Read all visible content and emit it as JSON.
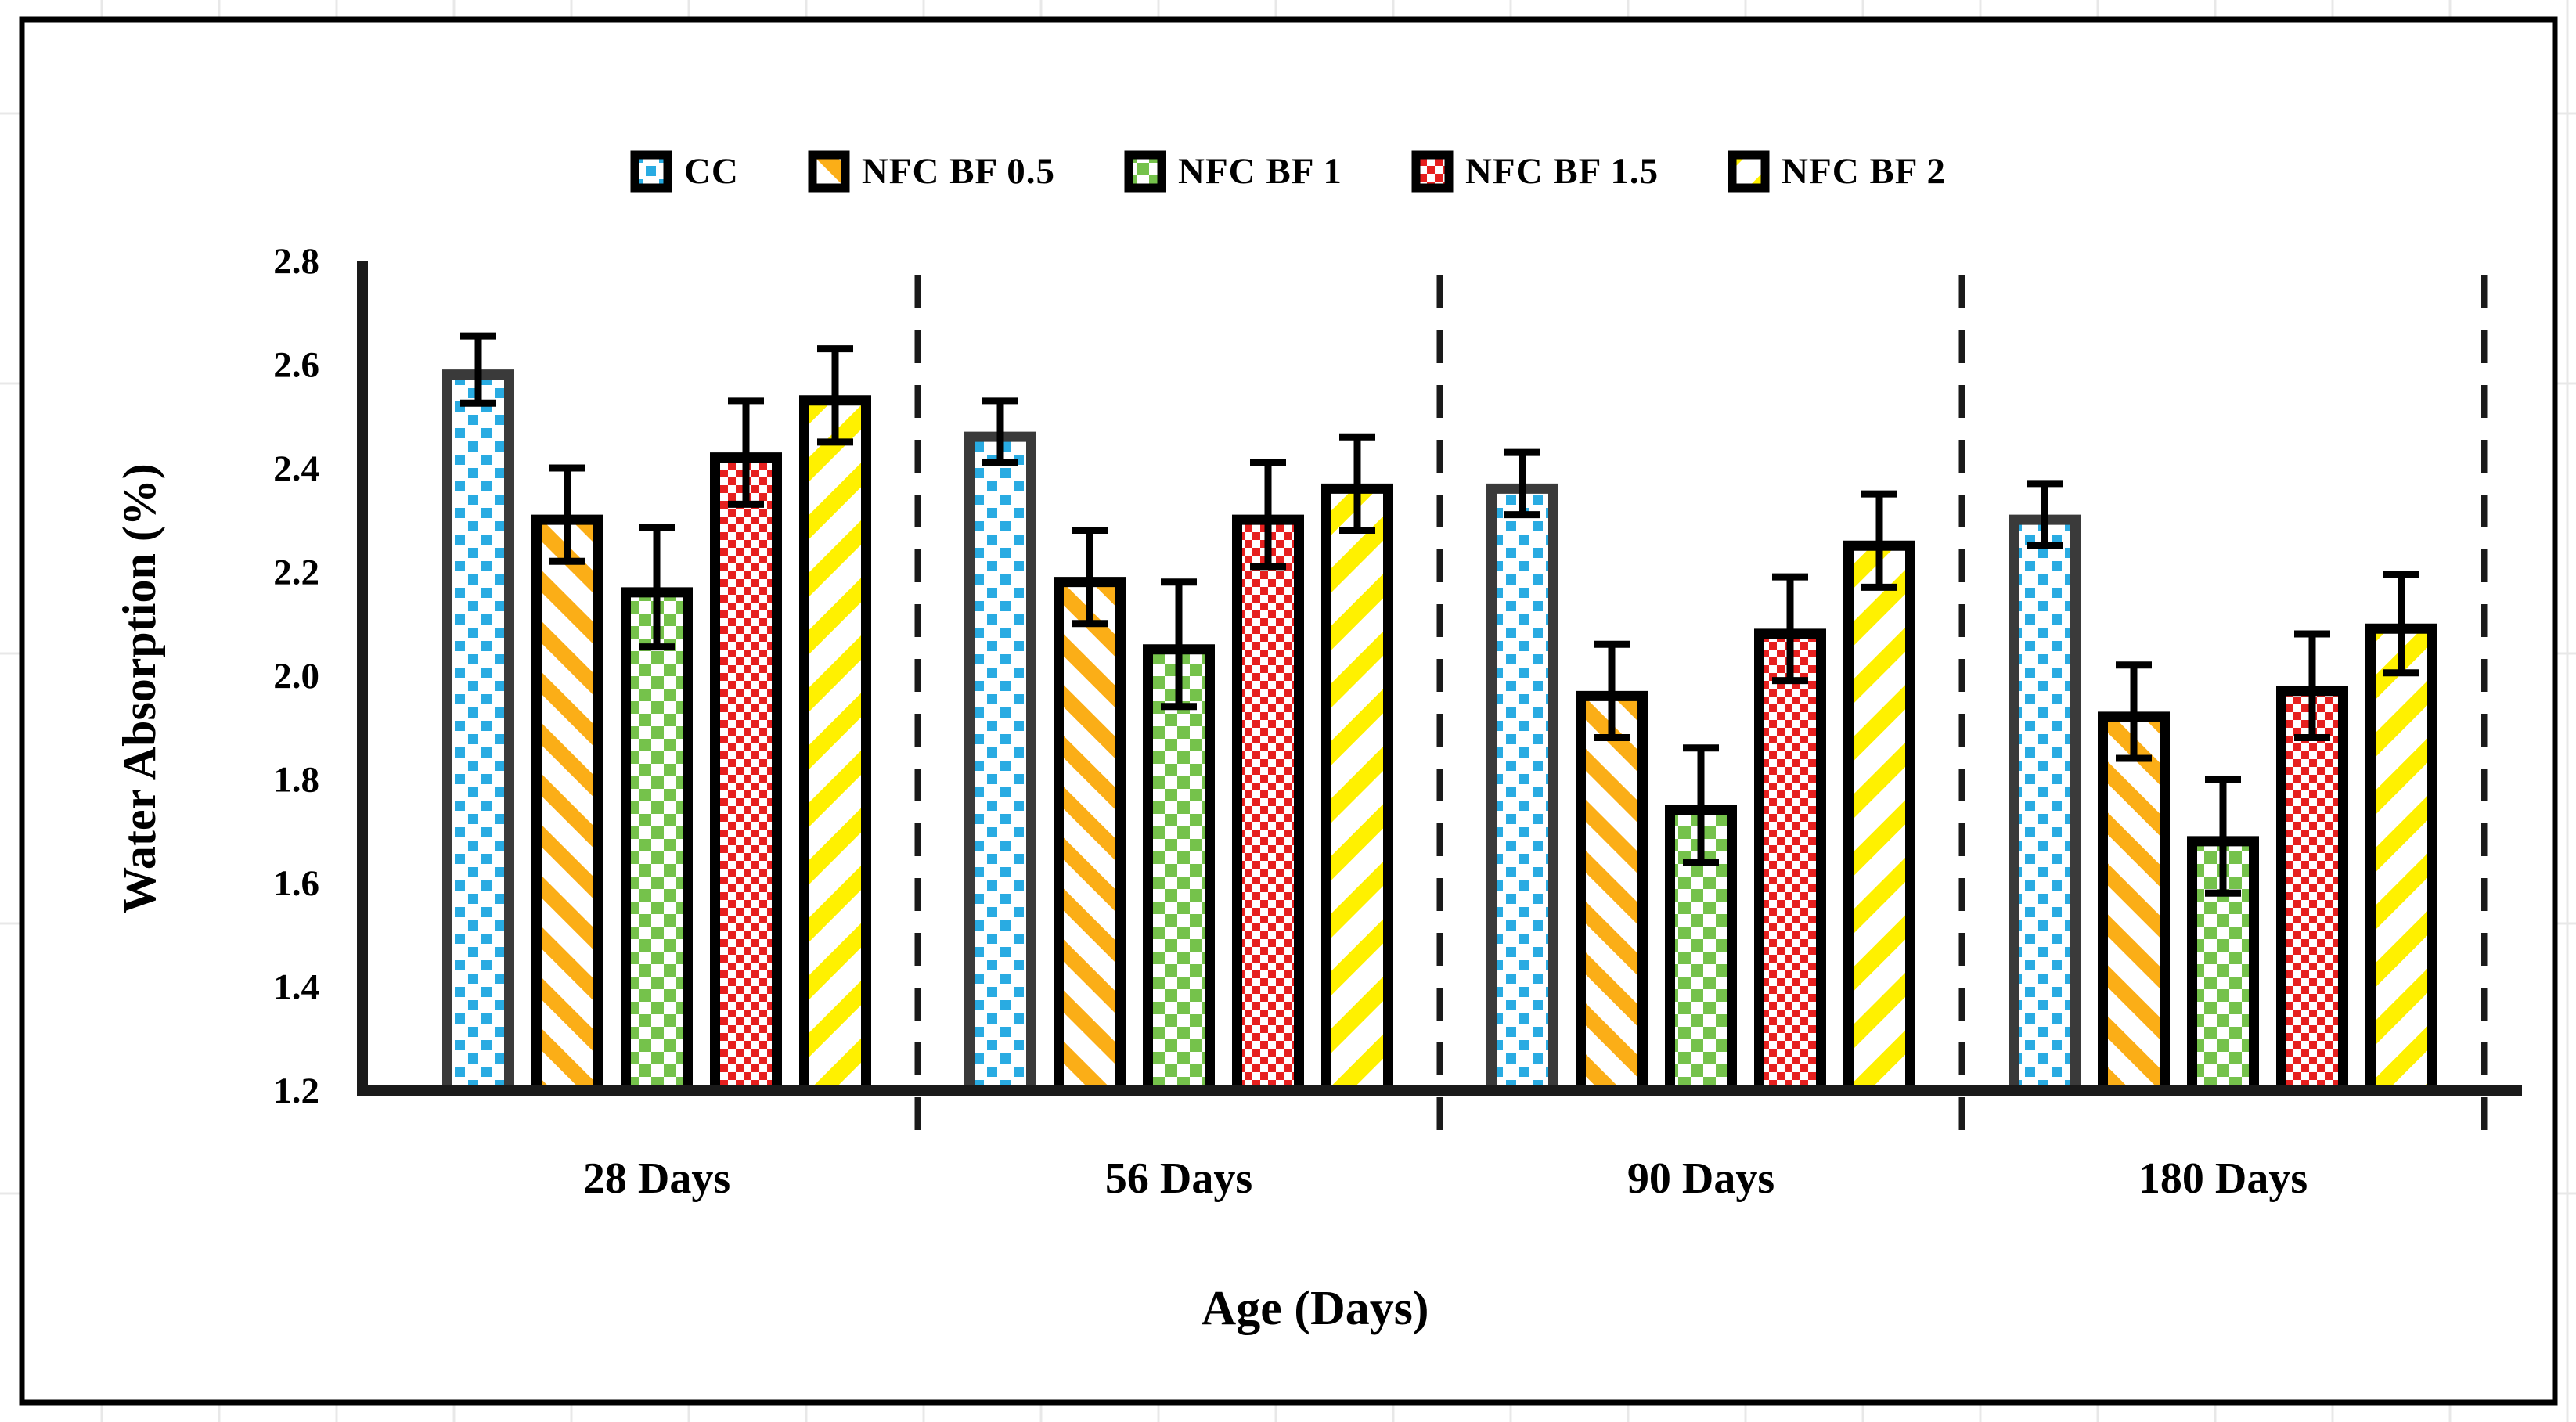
{
  "chart_data": {
    "type": "bar",
    "title": "",
    "xlabel": "Age (Days)",
    "ylabel": "Water Absorption (%)",
    "ylim": [
      1.2,
      2.8
    ],
    "yticks": [
      "2.8",
      "2.6",
      "2.4",
      "2.2",
      "2.0",
      "1.8",
      "1.6",
      "1.4",
      "1.2"
    ],
    "grid": false,
    "legend_position": "top",
    "error_bars": true,
    "group_separator_style": "vertical-dashed-lines",
    "categories": [
      "28 Days",
      "56 Days",
      "90 Days",
      "180 Days"
    ],
    "series": [
      {
        "name": "CC",
        "pattern": "blue-dotted-squares",
        "color": "#29ABE2",
        "border": "#3A3A3A",
        "values": [
          2.59,
          2.47,
          2.37,
          2.31
        ],
        "errors": [
          0.065,
          0.06,
          0.06,
          0.06
        ]
      },
      {
        "name": "NFC BF 0.5",
        "pattern": "orange-diagonal-stripes",
        "color": "#FBAE17",
        "border": "#000000",
        "values": [
          2.31,
          2.19,
          1.97,
          1.93
        ],
        "errors": [
          0.09,
          0.09,
          0.09,
          0.09
        ]
      },
      {
        "name": "NFC BF 1",
        "pattern": "green-checkerboard",
        "color": "#75C24B",
        "border": "#000000",
        "values": [
          2.17,
          2.06,
          1.75,
          1.69
        ],
        "errors": [
          0.115,
          0.12,
          0.11,
          0.11
        ]
      },
      {
        "name": "NFC BF 1.5",
        "pattern": "red-fine-checker",
        "color": "#E6201F",
        "border": "#000000",
        "values": [
          2.43,
          2.31,
          2.09,
          1.98
        ],
        "errors": [
          0.1,
          0.1,
          0.1,
          0.1
        ]
      },
      {
        "name": "NFC BF 2",
        "pattern": "yellow-diagonal-stripes",
        "color": "#FFF100",
        "border": "#000000",
        "values": [
          2.54,
          2.37,
          2.26,
          2.1
        ],
        "errors": [
          0.09,
          0.09,
          0.09,
          0.095
        ]
      }
    ]
  }
}
